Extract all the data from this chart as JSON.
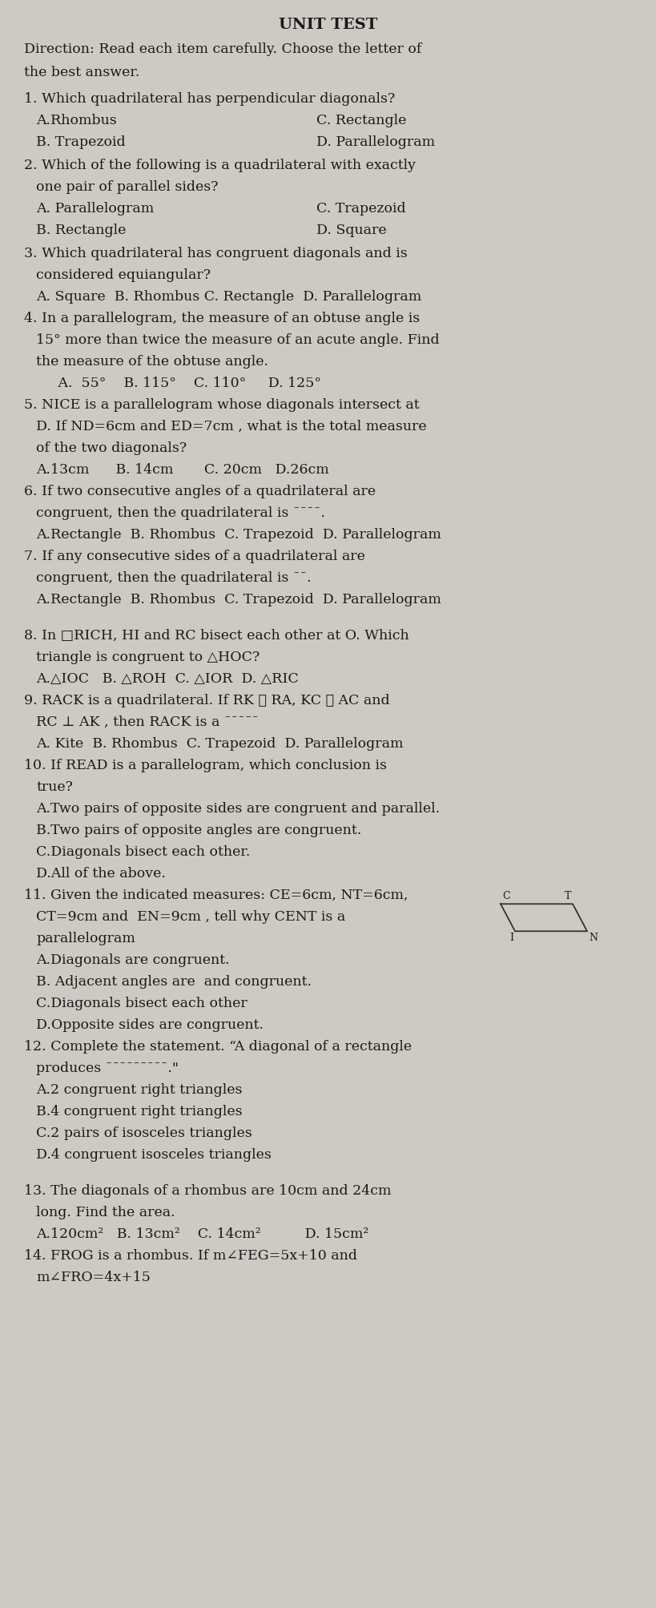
{
  "title": "UNIT TEST",
  "background_color": "#cccac2",
  "text_color": "#1a1a1a",
  "title_fontsize": 14,
  "body_fontsize": 12.5,
  "questions": [
    {
      "number": "1.",
      "text": "Which quadrilateral has perpendicular diagonals?",
      "choices_2col": true,
      "choices": [
        "A.Rhombus",
        "C. Rectangle",
        "B. Trapezoid",
        "D. Parallelogram"
      ]
    },
    {
      "number": "2.",
      "text": "Which of the following is a quadrilateral with exactly\none pair of parallel sides?",
      "choices_2col": true,
      "choices": [
        "A. Parallelogram",
        "C. Trapezoid",
        "B. Rectangle",
        "D. Square"
      ]
    },
    {
      "number": "3.",
      "text": "Which quadrilateral has congruent diagonals and is\nconsidered equiangular?",
      "choices_2col": false,
      "choices": [
        "A. Square  B. Rhombus C. Rectangle  D. Parallelogram"
      ]
    },
    {
      "number": "4.",
      "text": "In a parallelogram, the measure of an obtuse angle is\n15° more than twice the measure of an acute angle. Find\nthe measure of the obtuse angle.",
      "choices_2col": false,
      "choices": [
        "     A.  55°    B. 115°    C. 110°     D. 125°"
      ]
    },
    {
      "number": "5.",
      "text": "NICE is a parallelogram whose diagonals intersect at\nD. If ND=6cm and ED=7cm , what is the total measure\nof the two diagonals?",
      "choices_2col": false,
      "choices": [
        "A.13cm      B. 14cm       C. 20cm   D.26cm"
      ]
    },
    {
      "number": "6.",
      "text": "If two consecutive angles of a quadrilateral are\ncongruent, then the quadrilateral is ¯¯¯¯.",
      "choices_2col": false,
      "choices": [
        "A.Rectangle  B. Rhombus  C. Trapezoid  D. Parallelogram"
      ]
    },
    {
      "number": "7.",
      "text": "If any consecutive sides of a quadrilateral are\ncongruent, then the quadrilateral is ¯¯.",
      "choices_2col": false,
      "choices": [
        "A.Rectangle  B. Rhombus  C. Trapezoid  D. Parallelogram"
      ],
      "extra_space_after": true
    },
    {
      "number": "8.",
      "text": "In □RICH, HI and RC bisect each other at O. Which\ntriangle is congruent to △HOC?",
      "choices_2col": false,
      "choices": [
        "A.△IOC   B. △ROH  C. △IOR  D. △RIC"
      ]
    },
    {
      "number": "9.",
      "text": "RACK is a quadrilateral. If RK ≅ RA, KC ≅ AC and\nRC ⊥ AK , then RACK is a ¯¯¯¯¯",
      "choices_2col": false,
      "choices": [
        "A. Kite  B. Rhombus  C. Trapezoid  D. Parallelogram"
      ]
    },
    {
      "number": "10.",
      "text": "If READ is a parallelogram, which conclusion is\ntrue?",
      "choices_2col": false,
      "choices": [
        "A.Two pairs of opposite sides are congruent and parallel.",
        "B.Two pairs of opposite angles are congruent.",
        "C.Diagonals bisect each other.",
        "D.All of the above."
      ]
    },
    {
      "number": "11.",
      "text": "Given the indicated measures: CE=6cm, NT=6cm,\nCT=9cm and  EN=9cm , tell why CENT is a\nparallelogram",
      "choices_2col": false,
      "choices": [
        "A.Diagonals are congruent.",
        "B. Adjacent angles are  and congruent.",
        "C.Diagonals bisect each other",
        "D.Opposite sides are congruent."
      ],
      "has_diagram": true,
      "extra_space_after": false
    },
    {
      "number": "12.",
      "text": "Complete the statement. “A diagonal of a rectangle\nproduces ¯¯¯¯¯¯¯¯¯.\"",
      "choices_2col": false,
      "choices": [
        "A.2 congruent right triangles",
        "B.4 congruent right triangles",
        "C.2 pairs of isosceles triangles",
        "D.4 congruent isosceles triangles"
      ],
      "extra_space_after": true
    },
    {
      "number": "13.",
      "text": "The diagonals of a rhombus are 10cm and 24cm\nlong. Find the area.",
      "choices_2col": false,
      "choices": [
        "A.120cm²   B. 13cm²    C. 14cm²          D. 15cm²"
      ]
    },
    {
      "number": "14.",
      "text": "FROG is a rhombus. If m∠FEG=5x+10 and\nm∠FRO=4x+15",
      "choices_2col": false,
      "choices": []
    }
  ]
}
